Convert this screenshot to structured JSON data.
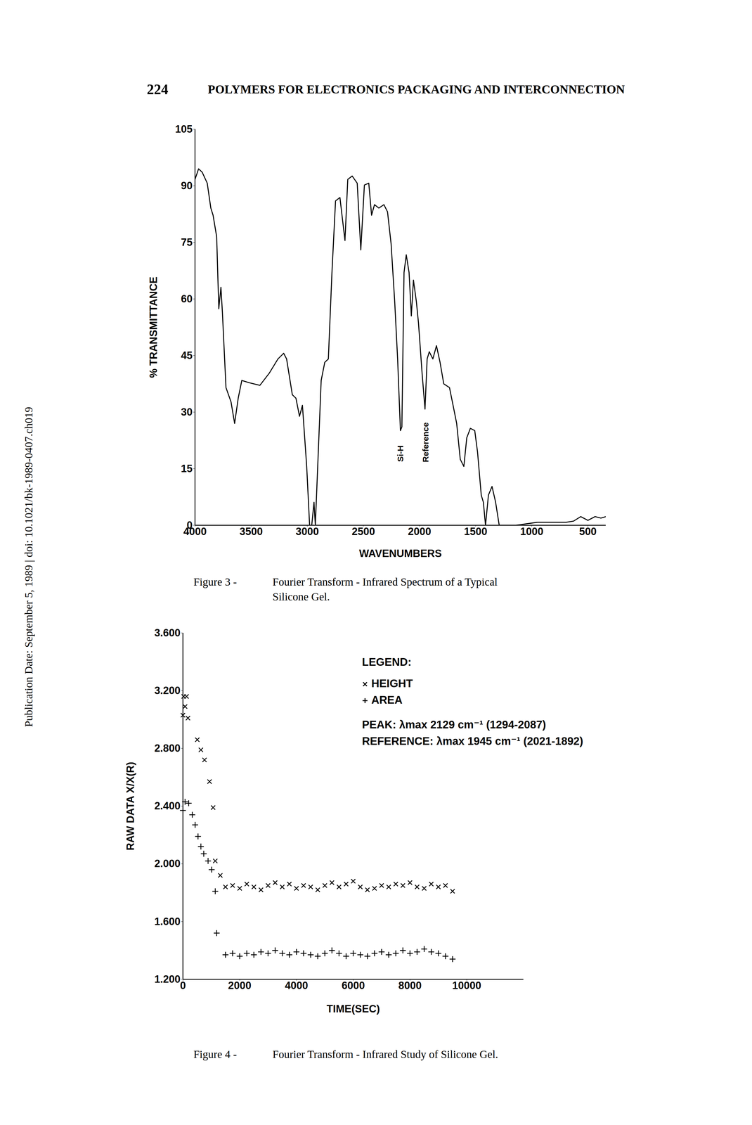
{
  "page": {
    "page_number": "224",
    "running_title": "POLYMERS FOR ELECTRONICS PACKAGING AND INTERCONNECTION",
    "side_note": "Publication Date: September 5, 1989 | doi: 10.1021/bk-1989-0407.ch019"
  },
  "chart_data": [
    {
      "type": "line",
      "xlabel": "WAVENUMBERS",
      "ylabel": "% TRANSMITTANCE",
      "color": "#000000",
      "x": [
        4000,
        3968,
        3936,
        3891,
        3859,
        3839,
        3807,
        3788,
        3769,
        3756,
        3724,
        3679,
        3647,
        3615,
        3583,
        3518,
        3422,
        3339,
        3261,
        3210,
        3184,
        3133,
        3101,
        3069,
        3043,
        3005,
        2979,
        2960,
        2940,
        2928,
        2876,
        2844,
        2812,
        2780,
        2748,
        2709,
        2683,
        2664,
        2639,
        2600,
        2555,
        2523,
        2491,
        2452,
        2427,
        2401,
        2362,
        2317,
        2285,
        2253,
        2221,
        2195,
        2170,
        2157,
        2138,
        2118,
        2093,
        2073,
        2054,
        2028,
        2009,
        1977,
        1951,
        1932,
        1913,
        1881,
        1849,
        1817,
        1784,
        1733,
        1701,
        1669,
        1637,
        1605,
        1579,
        1547,
        1508,
        1483,
        1450,
        1431,
        1412,
        1386,
        1354,
        1322,
        1290,
        1142,
        949,
        693,
        628,
        564,
        500,
        436,
        384,
        340
      ],
      "values": [
        91.7,
        94.5,
        93.6,
        90.7,
        84.1,
        82.2,
        76.5,
        57.4,
        63.1,
        56.5,
        36.5,
        32.7,
        27.0,
        33.7,
        38.4,
        37.8,
        37.1,
        40.3,
        44.1,
        45.6,
        44.1,
        34.6,
        33.7,
        28.9,
        31.8,
        15.6,
        0,
        0,
        6.1,
        0,
        38.4,
        43.2,
        44.1,
        67.0,
        86.0,
        86.9,
        80.3,
        75.5,
        91.7,
        92.6,
        90.7,
        73.0,
        90.2,
        90.7,
        82.2,
        85.0,
        84.1,
        85.0,
        83.1,
        74.6,
        59.3,
        44.1,
        25.1,
        26.1,
        67.0,
        71.7,
        67.0,
        55.5,
        65.0,
        59.3,
        53.6,
        40.3,
        30.8,
        44.1,
        46.0,
        44.1,
        47.6,
        43.2,
        37.5,
        36.5,
        31.8,
        27.0,
        17.5,
        15.6,
        23.2,
        25.7,
        25.1,
        19.4,
        8.0,
        6.1,
        0,
        8.0,
        10.3,
        6.1,
        0,
        0,
        0.8,
        0.8,
        1.1,
        2.3,
        1.3,
        2.3,
        1.9,
        2.3
      ],
      "xlim": [
        4000,
        340
      ],
      "xticks": [
        4000,
        3500,
        3000,
        2500,
        2000,
        1500,
        1000,
        500
      ],
      "ylim": [
        0,
        105
      ],
      "yticks": [
        0,
        15,
        30,
        45,
        60,
        75,
        90,
        105
      ],
      "annotations": [
        {
          "text": "Si-H",
          "x": 2170,
          "y": 19
        },
        {
          "text": "Reference",
          "x": 1945,
          "y": 22
        }
      ],
      "caption": {
        "label": "Figure 3 -",
        "lines": [
          "Fourier Transform - Infrared Spectrum of a Typical",
          "Silicone Gel."
        ]
      }
    },
    {
      "type": "scatter",
      "xlabel": "TIME(SEC)",
      "ylabel": "RAW DATA X/X(R)",
      "xlim": [
        0,
        12000
      ],
      "xticks": [
        0,
        2000,
        4000,
        6000,
        8000,
        10000
      ],
      "ylim": [
        1.2,
        3.6
      ],
      "yticks": [
        {
          "value": 1.2,
          "label": "1.200"
        },
        {
          "value": 1.6,
          "label": "1.600"
        },
        {
          "value": 2.0,
          "label": "2.000"
        },
        {
          "value": 2.4,
          "label": "2.400"
        },
        {
          "value": 2.8,
          "label": "2.800"
        },
        {
          "value": 3.2,
          "label": "3.200"
        },
        {
          "value": 3.6,
          "label": "3.600"
        }
      ],
      "legend": "top-right",
      "legend_title": "LEGEND:",
      "legend_notes": [
        "PEAK: λmax 2129 cm⁻¹ (1294-2087)",
        "REFERENCE: λmax 1945 cm⁻¹ (2021-1892)"
      ],
      "series": [
        {
          "name": "HEIGHT",
          "marker": "x",
          "color": "#000000",
          "x": [
            0,
            25,
            76,
            127,
            177,
            506,
            633,
            760,
            937,
            1063,
            1139,
            1317,
            1500,
            1750,
            2000,
            2250,
            2500,
            2750,
            3000,
            3250,
            3500,
            3750,
            4000,
            4250,
            4500,
            4750,
            5000,
            5250,
            5500,
            5750,
            6000,
            6250,
            6500,
            6750,
            7000,
            7250,
            7500,
            7750,
            8000,
            8250,
            8500,
            8750,
            9000,
            9250,
            9500
          ],
          "values": [
            3.03,
            3.16,
            3.09,
            3.16,
            3.01,
            2.86,
            2.79,
            2.72,
            2.57,
            2.39,
            2.02,
            1.92,
            1.84,
            1.85,
            1.83,
            1.86,
            1.84,
            1.82,
            1.85,
            1.87,
            1.84,
            1.86,
            1.83,
            1.85,
            1.84,
            1.82,
            1.85,
            1.87,
            1.84,
            1.86,
            1.88,
            1.84,
            1.82,
            1.83,
            1.85,
            1.84,
            1.86,
            1.85,
            1.87,
            1.84,
            1.83,
            1.86,
            1.84,
            1.85,
            1.81
          ]
        },
        {
          "name": "AREA",
          "marker": "plus",
          "color": "#000000",
          "x": [
            0,
            76,
            203,
            329,
            430,
            532,
            633,
            734,
            886,
            1013,
            1139,
            1190,
            1500,
            1750,
            2000,
            2250,
            2500,
            2750,
            3000,
            3250,
            3500,
            3750,
            4000,
            4250,
            4500,
            4750,
            5000,
            5250,
            5500,
            5750,
            6000,
            6250,
            6500,
            6750,
            7000,
            7250,
            7500,
            7750,
            8000,
            8250,
            8500,
            8750,
            9000,
            9250,
            9500
          ],
          "values": [
            2.37,
            2.43,
            2.42,
            2.34,
            2.27,
            2.19,
            2.12,
            2.07,
            2.02,
            1.96,
            1.81,
            1.52,
            1.37,
            1.38,
            1.36,
            1.38,
            1.37,
            1.39,
            1.38,
            1.4,
            1.38,
            1.37,
            1.39,
            1.38,
            1.37,
            1.36,
            1.38,
            1.4,
            1.38,
            1.36,
            1.38,
            1.37,
            1.36,
            1.38,
            1.39,
            1.37,
            1.38,
            1.4,
            1.38,
            1.39,
            1.41,
            1.39,
            1.38,
            1.36,
            1.34
          ]
        }
      ],
      "caption": {
        "label": "Figure 4 -",
        "lines": [
          "Fourier Transform - Infrared Study of Silicone Gel."
        ]
      }
    }
  ]
}
